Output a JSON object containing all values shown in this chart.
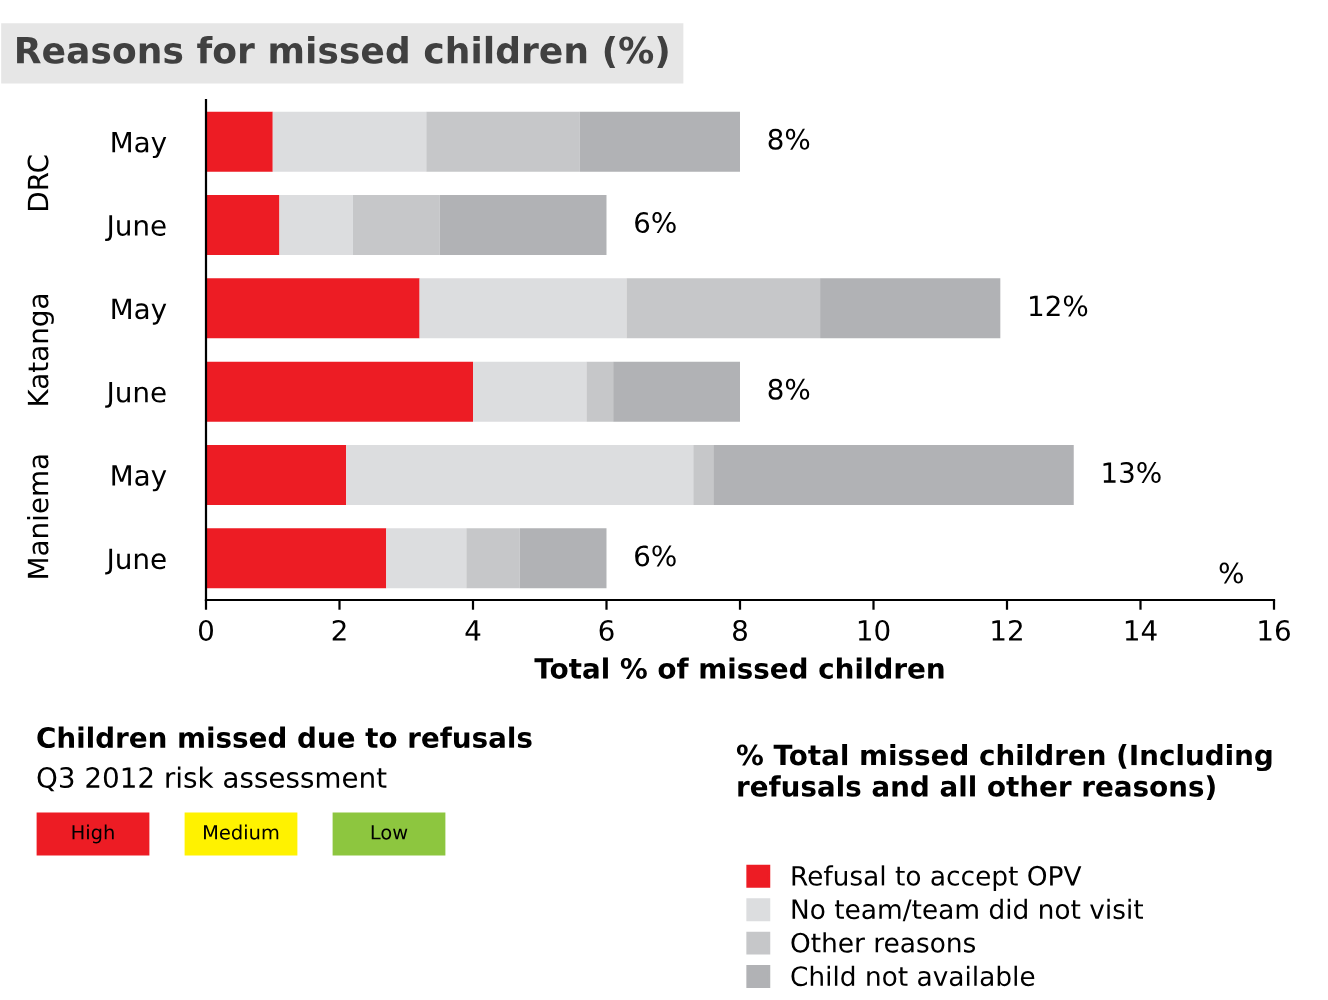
{
  "chart_data": [
    {
      "type": "bar",
      "orientation": "horizontal",
      "stacked": true,
      "title": "Reasons for missed children (%)",
      "xlabel": "Total % of missed children",
      "legend_title": "% Total missed children (Including refusals and all other reasons)",
      "legend": "bottom right",
      "categories": [
        "May",
        "June",
        "May",
        "June",
        "May",
        "June"
      ],
      "series": [
        {
          "name": "Refusal to accept OPV",
          "color": "#ed1c24",
          "values": [
            1.0,
            1.1,
            3.2,
            4.0,
            2.1,
            2.7
          ]
        },
        {
          "name": "No team/team did not visit",
          "color": "#dcdddf",
          "values": [
            2.3,
            1.1,
            3.1,
            1.7,
            5.2,
            1.2
          ]
        },
        {
          "name": "Other reasons",
          "color": "#c6c7c9",
          "values": [
            2.3,
            1.3,
            2.9,
            0.4,
            0.3,
            0.8
          ]
        },
        {
          "name": "Child not available",
          "color": "#b1b2b5",
          "values": [
            2.4,
            2.5,
            2.7,
            1.9,
            5.4,
            1.3
          ]
        }
      ],
      "totals": [
        "8%",
        "6%",
        "12%",
        "8%",
        "13%",
        "6%"
      ],
      "xlim": [
        0,
        16
      ],
      "xticks": [
        0,
        2,
        4,
        6,
        8,
        10,
        12,
        14,
        16
      ],
      "annotations": [
        "DRC",
        "Katanga",
        "Maniema",
        "%"
      ]
    },
    {
      "type": "other",
      "title": "Children missed due to refusals",
      "subtitle": "Q3 2012 risk assessment",
      "categories": [
        "High",
        "Medium",
        "Low"
      ],
      "colors": [
        "#ed1c24",
        "#fff200",
        "#8dc63f"
      ]
    }
  ]
}
